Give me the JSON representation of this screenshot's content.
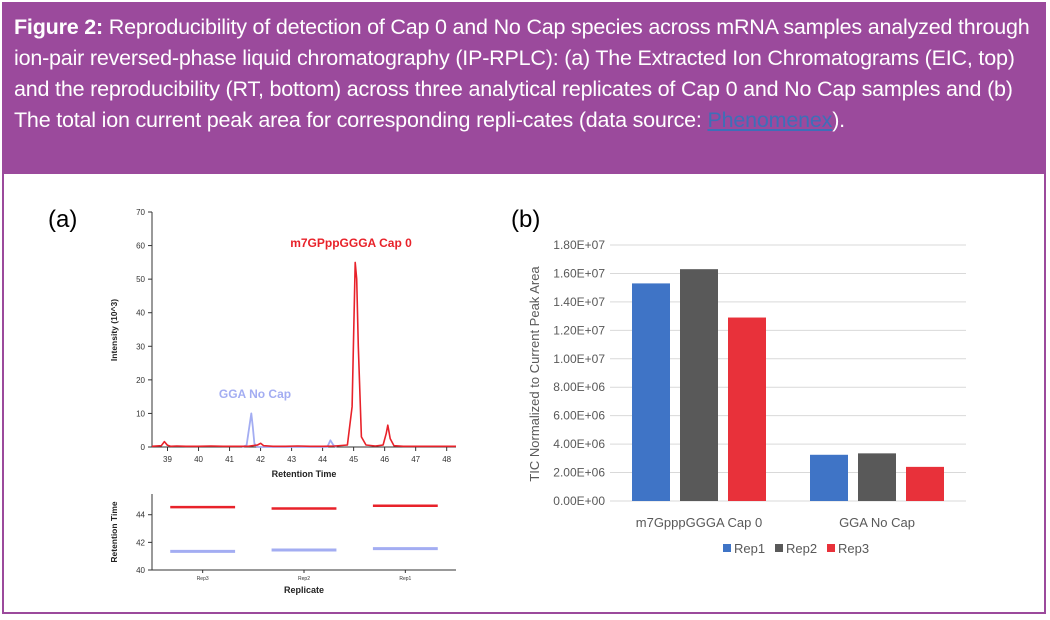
{
  "caption": {
    "label": "Figure 2:",
    "text": " Reproducibility of detection of Cap 0 and No Cap species across mRNA samples analyzed through ion-pair reversed-phase liquid chromatography (IP-RPLC): (a) The Extracted Ion Chromatograms (EIC, top) and the reproducibility (RT, bottom) across three analytical replicates of Cap 0 and No Cap samples and (b) The total ion current peak area for corresponding repli-cates (data source: ",
    "link": "Phenomenex",
    "end": ")."
  },
  "colors": {
    "frame": "#9b4a9c",
    "red": "#e8222a",
    "blue": "#a3adf2",
    "rep1": "#3f74c6",
    "rep2": "#595959",
    "rep3": "#e8313a"
  },
  "chart_data": [
    {
      "id": "a-top",
      "panel": "(a)",
      "type": "line",
      "title": "",
      "xlabel": "Retention Time",
      "ylabel": "Intensity (10^3)",
      "xlim": [
        38.5,
        48.3
      ],
      "ylim": [
        0,
        70
      ],
      "xticks": [
        39,
        40,
        41,
        42,
        43,
        44,
        45,
        46,
        47,
        48
      ],
      "yticks": [
        0,
        10,
        20,
        30,
        40,
        50,
        60,
        70
      ],
      "annotations": [
        "m7GPppGGGA Cap 0",
        "GGA No Cap"
      ],
      "series": [
        {
          "name": "m7GPppGGGA Cap 0",
          "x": [
            38.5,
            38.8,
            38.9,
            39.0,
            39.1,
            39.3,
            39.6,
            40.0,
            40.4,
            40.8,
            41.2,
            41.6,
            41.9,
            42.0,
            42.1,
            42.4,
            42.8,
            43.2,
            43.6,
            44.0,
            44.4,
            44.8,
            44.95,
            45.05,
            45.1,
            45.15,
            45.25,
            45.4,
            45.7,
            45.95,
            46.05,
            46.1,
            46.18,
            46.3,
            46.6,
            47.0,
            47.4,
            47.8,
            48.3
          ],
          "y": [
            0.2,
            0.4,
            1.6,
            0.5,
            0.2,
            0.3,
            0.2,
            0.2,
            0.3,
            0.2,
            0.2,
            0.2,
            0.6,
            1.1,
            0.4,
            0.2,
            0.2,
            0.3,
            0.2,
            0.2,
            0.3,
            0.6,
            12,
            55,
            50,
            30,
            3,
            0.6,
            0.3,
            0.6,
            4,
            6.5,
            2.5,
            0.4,
            0.2,
            0.2,
            0.2,
            0.2,
            0.2
          ]
        },
        {
          "name": "GGA No Cap",
          "x": [
            41.4,
            41.55,
            41.62,
            41.7,
            41.75,
            41.8,
            41.9,
            44.15,
            44.25,
            44.35,
            44.45
          ],
          "y": [
            0,
            0.5,
            5,
            10,
            6,
            1,
            0,
            0,
            2,
            0.5,
            0
          ]
        }
      ]
    },
    {
      "id": "a-bottom",
      "type": "scatter",
      "xlabel": "Replicate",
      "ylabel": "Retention Time",
      "categories": [
        "Rep3",
        "Rep2",
        "Rep1"
      ],
      "ylim": [
        40,
        45.5
      ],
      "yticks": [
        40,
        42,
        44
      ],
      "series": [
        {
          "name": "Cap 0",
          "values": [
            44.55,
            44.45,
            44.65
          ]
        },
        {
          "name": "No Cap",
          "values": [
            41.35,
            41.45,
            41.55
          ]
        }
      ]
    },
    {
      "id": "b",
      "panel": "(b)",
      "type": "bar",
      "title": "",
      "xlabel": "",
      "ylabel": "TIC Normalized to Current  Peak Area",
      "categories": [
        "m7GpppGGGA Cap 0",
        "GGA No Cap"
      ],
      "ylim": [
        0,
        18000000
      ],
      "yticks": [
        "0.00E+00",
        "2.00E+06",
        "4.00E+06",
        "6.00E+06",
        "8.00E+06",
        "1.00E+07",
        "1.20E+07",
        "1.40E+07",
        "1.60E+07",
        "1.80E+07"
      ],
      "legend": [
        "Rep1",
        "Rep2",
        "Rep3"
      ],
      "series": [
        {
          "name": "Rep1",
          "values": [
            15300000,
            3250000
          ]
        },
        {
          "name": "Rep2",
          "values": [
            16300000,
            3350000
          ]
        },
        {
          "name": "Rep3",
          "values": [
            12900000,
            2400000
          ]
        }
      ]
    }
  ]
}
